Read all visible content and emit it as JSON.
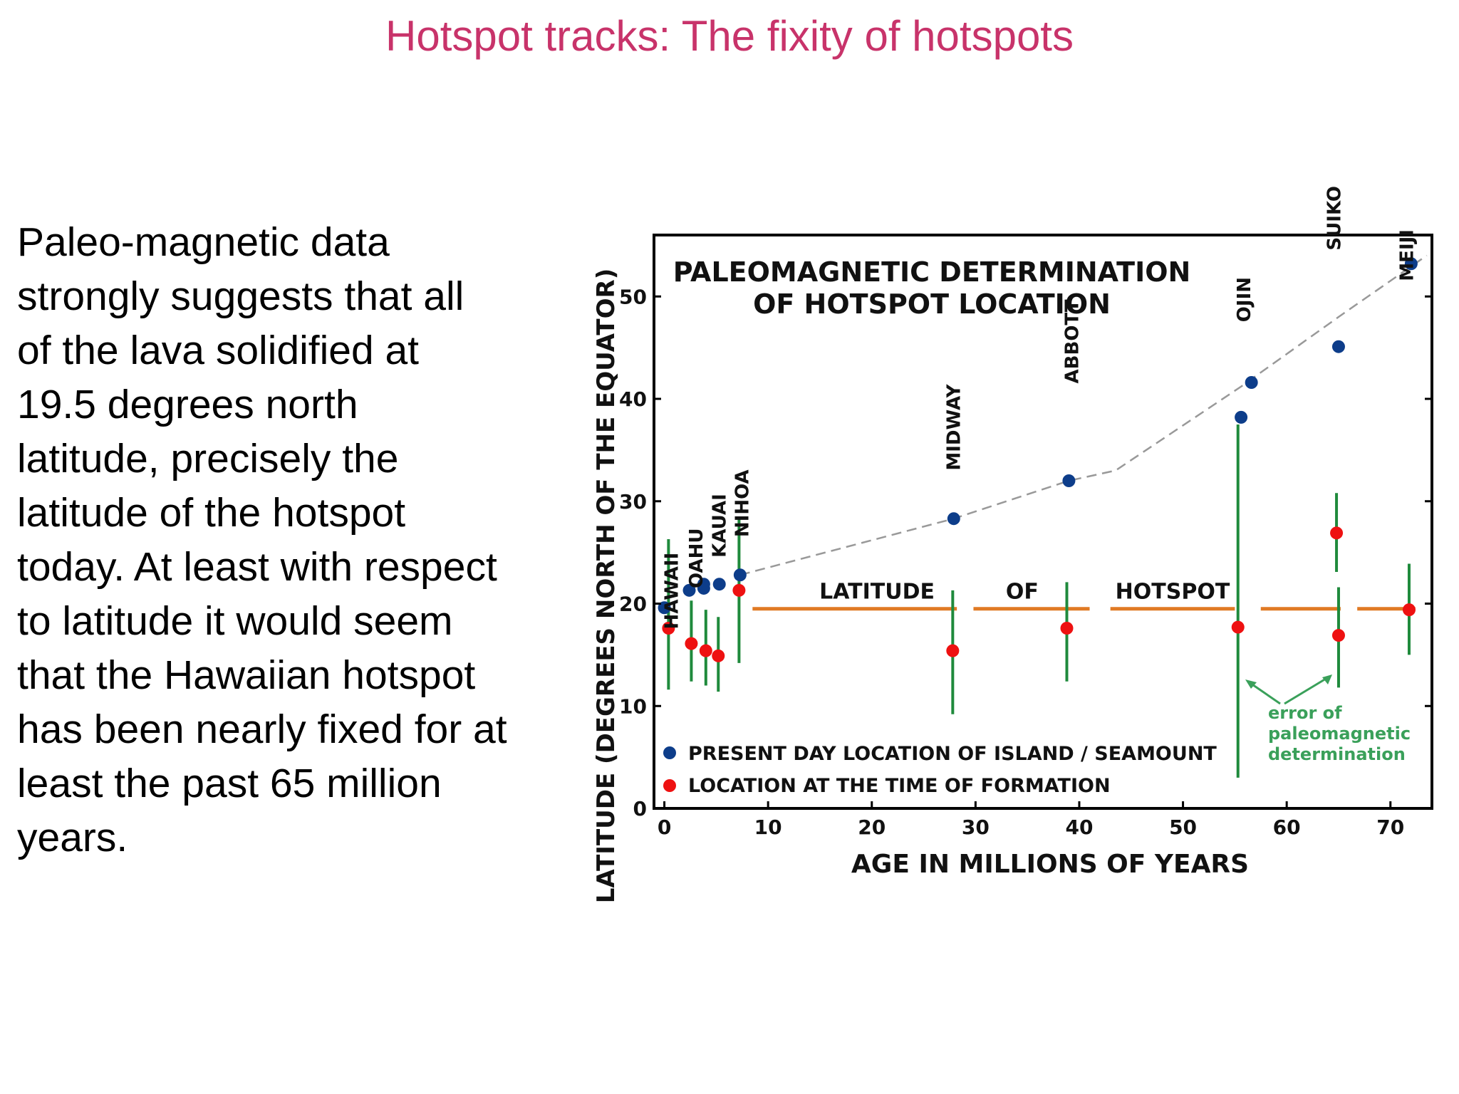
{
  "slide": {
    "title": "Hotspot tracks: The fixity of hotspots",
    "body_lines": [
      "Paleo-magnetic data",
      "strongly suggests that all",
      "of the lava solidified at",
      "19.5 degrees north",
      "latitude, precisely the",
      "latitude of the hotspot",
      "today. At least with respect",
      "to latitude it would seem",
      "that the Hawaiian hotspot",
      "has been nearly fixed for at",
      "least the past 65 million",
      "years."
    ]
  },
  "colors": {
    "title": "#c8336a",
    "present": "#0d3d8a",
    "formation": "#ee1111",
    "error_bar": "#1f8a3c",
    "hotspot_line": "#e07a24",
    "trend": "#999999",
    "note": "#3aa05a"
  },
  "chart_data": {
    "type": "scatter",
    "title_lines": [
      "PALEOMAGNETIC  DETERMINATION",
      "OF  HOTSPOT LOCATION"
    ],
    "xlabel": "AGE  IN  MILLIONS  OF  YEARS",
    "ylabel": "LATITUDE  (DEGREES NORTH OF THE  EQUATOR)",
    "xlim": [
      -1,
      74
    ],
    "ylim": [
      0,
      56
    ],
    "xticks": [
      0,
      10,
      20,
      30,
      40,
      50,
      60,
      70
    ],
    "yticks": [
      0,
      10,
      20,
      30,
      40,
      50
    ],
    "legend": [
      {
        "label": "PRESENT DAY LOCATION OF ISLAND / SEAMOUNT",
        "series": "present"
      },
      {
        "label": "LOCATION AT THE TIME OF FORMATION",
        "series": "formation"
      }
    ],
    "hotspot_line": {
      "y": 19.5,
      "words": [
        "LATITUDE",
        "OF",
        "HOTSPOT"
      ]
    },
    "annotation": {
      "lines": [
        "error of",
        "paleomagnetic",
        "determination"
      ]
    },
    "present": [
      {
        "x": 0,
        "y": 19.6
      },
      {
        "x": 2.4,
        "y": 21.3
      },
      {
        "x": 3.8,
        "y": 21.5
      },
      {
        "x": 3.8,
        "y": 21.9
      },
      {
        "x": 5.3,
        "y": 21.9
      },
      {
        "x": 7.3,
        "y": 22.8
      },
      {
        "x": 27.9,
        "y": 28.3
      },
      {
        "x": 39.0,
        "y": 32.0
      },
      {
        "x": 55.6,
        "y": 38.2
      },
      {
        "x": 56.6,
        "y": 41.6
      },
      {
        "x": 65.0,
        "y": 45.1
      },
      {
        "x": 72.0,
        "y": 53.2
      }
    ],
    "formation": [
      {
        "name": "HAWAII",
        "x": 0.4,
        "y": 17.6,
        "lo": 11.6,
        "hi": 26.3
      },
      {
        "name": "OAHU",
        "x": 2.6,
        "y": 16.1,
        "lo": 12.4,
        "hi": 20.3
      },
      {
        "name": "KAUAI",
        "x": 4.0,
        "y": 15.4,
        "lo": 12.0,
        "hi": 19.4
      },
      {
        "name": "NIHOA",
        "x": 5.2,
        "y": 14.9,
        "lo": 11.4,
        "hi": 18.7
      },
      {
        "name": "",
        "x": 7.2,
        "y": 21.3,
        "lo": 14.2,
        "hi": 28.5
      },
      {
        "name": "MIDWAY",
        "x": 27.8,
        "y": 15.4,
        "lo": 9.2,
        "hi": 21.3
      },
      {
        "name": "ABBOTT",
        "x": 38.8,
        "y": 17.6,
        "lo": 12.4,
        "hi": 22.1
      },
      {
        "name": "OJIN",
        "x": 55.3,
        "y": 17.7,
        "lo": 3.0,
        "hi": 37.5
      },
      {
        "name": "SUIKO",
        "x": 64.8,
        "y": 26.9,
        "lo": 23.1,
        "hi": 30.8
      },
      {
        "name": "SUIKO",
        "x": 65.0,
        "y": 16.9,
        "lo": 11.8,
        "hi": 21.6
      },
      {
        "name": "MEIJI",
        "x": 71.8,
        "y": 19.4,
        "lo": 15.0,
        "hi": 23.9
      }
    ],
    "trend": [
      [
        7.3,
        22.8
      ],
      [
        27.9,
        28.3
      ],
      [
        39.0,
        32.0
      ],
      [
        43.5,
        33.0
      ],
      [
        55.6,
        41.2
      ],
      [
        65.0,
        48.0
      ],
      [
        73.5,
        54.0
      ]
    ],
    "point_labels": [
      {
        "text": "HAWAII",
        "x": 0.6
      },
      {
        "text": "OAHU",
        "x": 3.0
      },
      {
        "text": "KAUAI",
        "x": 5.2
      },
      {
        "text": "NIHOA",
        "x": 7.4
      },
      {
        "text": "MIDWAY",
        "x": 27.8
      },
      {
        "text": "ABBOTT",
        "x": 39.2
      },
      {
        "text": "OJIN",
        "x": 55.8
      },
      {
        "text": "SUIKO",
        "x": 64.5
      },
      {
        "text": "MEIJI",
        "x": 71.5
      }
    ]
  }
}
